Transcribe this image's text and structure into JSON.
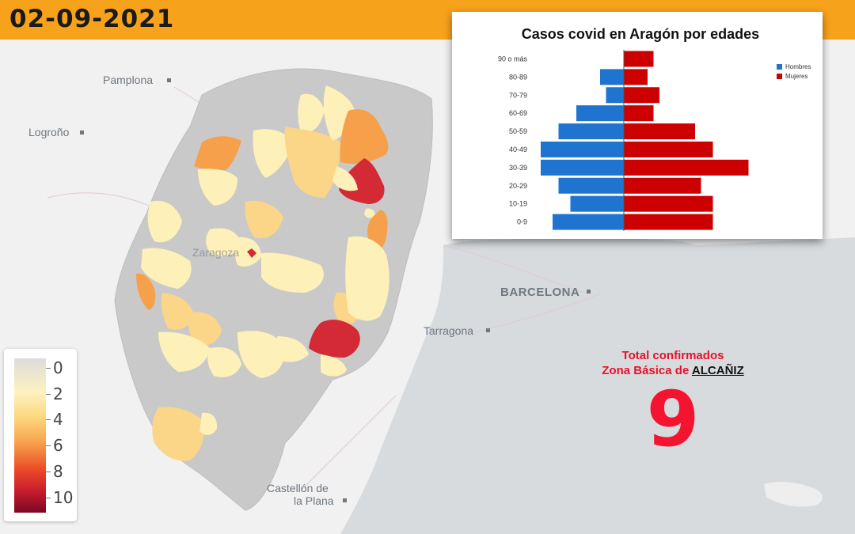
{
  "header": {
    "date": "02-09-2021",
    "bar_color": "#f7a21b"
  },
  "map": {
    "cities": [
      {
        "name": "Pamplona"
      },
      {
        "name": "Logroño"
      },
      {
        "name": "Zaragoza"
      },
      {
        "name": "BARCELONA"
      },
      {
        "name": "Tarragona"
      },
      {
        "name": "Castellón de"
      },
      {
        "name": "la Plana"
      }
    ],
    "colors": {
      "none": "#c9c9c9",
      "low": "#fdf0b8",
      "mid": "#fbd588",
      "orange": "#f6a04c",
      "high": "#d42a36"
    }
  },
  "legend": {
    "labels": [
      "0",
      "2",
      "4",
      "6",
      "8",
      "10"
    ],
    "range": [
      0,
      10
    ]
  },
  "chart": {
    "title": "Casos covid en Aragón por edades",
    "legend": [
      {
        "name": "Hombres",
        "color": "#1f74d0"
      },
      {
        "name": "Mujeres",
        "color": "#cc0000"
      }
    ]
  },
  "chart_data": {
    "type": "bar",
    "orientation": "horizontal-pyramid",
    "title": "Casos covid en Aragón por edades",
    "categories": [
      "90 o más",
      "80-89",
      "70-79",
      "60-69",
      "50-59",
      "40-49",
      "30-39",
      "20-29",
      "10-19",
      "0-9"
    ],
    "series": [
      {
        "name": "Hombres",
        "color": "#1f74d0",
        "values": [
          0,
          2,
          1.5,
          4,
          5.5,
          7,
          7,
          5.5,
          4.5,
          6
        ]
      },
      {
        "name": "Mujeres",
        "color": "#cc0000",
        "values": [
          2.5,
          2,
          3,
          2.5,
          6,
          7.5,
          10.5,
          6.5,
          7.5,
          7.5
        ]
      }
    ],
    "legend_position": "top-right",
    "grid": false
  },
  "total": {
    "line1": "Total confirmados",
    "line2_prefix": "Zona Básica de ",
    "town": "ALCAÑIZ",
    "value": "9",
    "color": "#f5142f"
  }
}
